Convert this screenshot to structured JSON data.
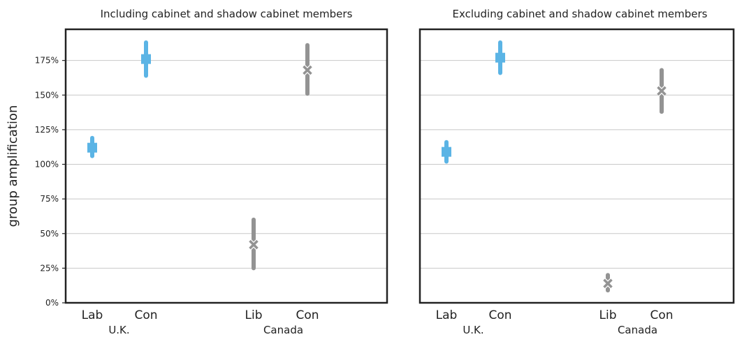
{
  "ylabel": "group amplification",
  "colors": {
    "uk": "#5bb4e5",
    "canada": "#939393",
    "grid": "#c8c8c8",
    "frame": "#222222"
  },
  "chart_data": [
    {
      "type": "scatter",
      "title": "Including cabinet and shadow cabinet members",
      "ylabel": "group amplification",
      "ylim": [
        0,
        1.97
      ],
      "yticks": [
        "0%",
        "25%",
        "50%",
        "75%",
        "100%",
        "125%",
        "150%",
        "175%"
      ],
      "grid": "horizontal",
      "groups": [
        {
          "name": "U.K.",
          "categories": [
            "Lab",
            "Con"
          ],
          "marker": "square",
          "color": "#5bb4e5",
          "values": [
            1.12,
            1.76
          ],
          "ci_low": [
            1.06,
            1.64
          ],
          "ci_high": [
            1.19,
            1.88
          ]
        },
        {
          "name": "Canada",
          "categories": [
            "Lib",
            "Con"
          ],
          "marker": "x",
          "color": "#939393",
          "values": [
            0.42,
            1.68
          ],
          "ci_low": [
            0.25,
            1.51
          ],
          "ci_high": [
            0.6,
            1.86
          ]
        }
      ]
    },
    {
      "type": "scatter",
      "title": "Excluding cabinet and shadow cabinet members",
      "ylim": [
        0,
        1.97
      ],
      "grid": "horizontal",
      "groups": [
        {
          "name": "U.K.",
          "categories": [
            "Lab",
            "Con"
          ],
          "marker": "square",
          "color": "#5bb4e5",
          "values": [
            1.09,
            1.77
          ],
          "ci_low": [
            1.02,
            1.66
          ],
          "ci_high": [
            1.16,
            1.88
          ]
        },
        {
          "name": "Canada",
          "categories": [
            "Lib",
            "Con"
          ],
          "marker": "x",
          "color": "#939393",
          "values": [
            0.14,
            1.53
          ],
          "ci_low": [
            0.09,
            1.38
          ],
          "ci_high": [
            0.2,
            1.68
          ]
        }
      ]
    }
  ]
}
